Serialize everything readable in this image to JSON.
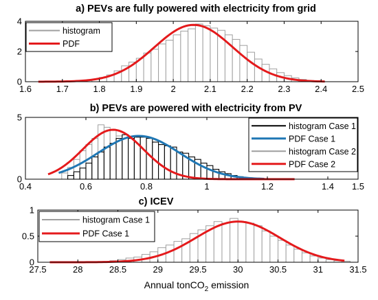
{
  "figure": {
    "xlabel_prefix": "Annual tonCO",
    "xlabel_sub": "2",
    "xlabel_suffix": " emission"
  },
  "colors": {
    "hist_gray": "#9e9e9e",
    "hist_black": "#000000",
    "pdf_red": "#e41a1c",
    "pdf_blue": "#1f77b4"
  },
  "chart_data": [
    {
      "type": "bar",
      "title": "a) PEVs are fully powered with electricity from grid",
      "xlim": [
        1.6,
        2.5
      ],
      "ylim": [
        0,
        4
      ],
      "xticks": [
        "1.6",
        "1.7",
        "1.8",
        "1.9",
        "2",
        "2.1",
        "2.2",
        "2.3",
        "2.4",
        "2.5"
      ],
      "yticks": [
        "0",
        "2",
        "4"
      ],
      "legend": {
        "position": "top-left",
        "entries": [
          "histogram",
          "PDF"
        ]
      },
      "series": [
        {
          "name": "histogram",
          "kind": "histogram",
          "color": "gray",
          "bin_start": 1.7,
          "bin_width": 0.02,
          "values": [
            0.01,
            0.02,
            0.04,
            0.08,
            0.15,
            0.28,
            0.45,
            0.72,
            1.05,
            1.3,
            1.55,
            1.9,
            2.15,
            2.5,
            2.75,
            3.1,
            3.35,
            3.5,
            3.82,
            3.7,
            3.55,
            3.4,
            3.1,
            2.8,
            2.4,
            1.95,
            1.5,
            1.15,
            0.85,
            0.6,
            0.4,
            0.25,
            0.15,
            0.08
          ]
        },
        {
          "name": "PDF",
          "kind": "pdf",
          "color": "red",
          "mean": 2.055,
          "sd": 0.106,
          "x_range": [
            1.635,
            2.41
          ]
        }
      ]
    },
    {
      "type": "bar",
      "title": "b) PEVs are powered with electricity from PV",
      "xlim": [
        0.4,
        1.5
      ],
      "ylim": [
        0,
        5
      ],
      "xticks": [
        "0.4",
        "0.6",
        "0.8",
        "1",
        "1.2",
        "1.4",
        "1.5"
      ],
      "yticks": [
        "0",
        "5"
      ],
      "legend": {
        "position": "top-right",
        "entries": [
          "histogram Case 1",
          "PDF Case 1",
          "histogram Case 2",
          "PDF Case 2"
        ]
      },
      "series": [
        {
          "name": "histogram Case 1",
          "kind": "histogram",
          "color": "black",
          "bin_start": 0.54,
          "bin_width": 0.02,
          "values": [
            0.3,
            0.6,
            0.9,
            1.3,
            1.8,
            2.2,
            2.6,
            2.9,
            3.3,
            3.6,
            3.3,
            3.4,
            3.4,
            3.3,
            3.0,
            2.8,
            2.7,
            2.6,
            2.2,
            2.1,
            1.8,
            1.6,
            1.3,
            1.1,
            0.8,
            0.6,
            0.45,
            0.3,
            0.2,
            0.12,
            0.08,
            0.04
          ]
        },
        {
          "name": "PDF Case 1",
          "kind": "pdf",
          "color": "blue",
          "mean": 0.775,
          "sd": 0.135,
          "peak": 3.5,
          "x_range": [
            0.51,
            1.19
          ]
        },
        {
          "name": "histogram Case 2",
          "kind": "histogram",
          "color": "gray",
          "bin_start": 0.52,
          "bin_width": 0.02,
          "values": [
            0.5,
            0.95,
            1.6,
            2.3,
            2.8,
            3.3,
            4.4,
            4.2,
            4.0,
            3.5,
            3.2,
            3.0,
            2.5,
            2.1,
            1.7,
            1.3,
            1.0,
            0.7,
            0.5,
            0.3,
            0.2,
            0.1,
            0.06,
            0.03
          ]
        },
        {
          "name": "PDF Case 2",
          "kind": "pdf",
          "color": "red",
          "mean": 0.69,
          "sd": 0.1,
          "peak": 4.0,
          "x_range": [
            0.475,
            1.29
          ]
        }
      ]
    },
    {
      "type": "bar",
      "title": "c) ICEV",
      "xlim": [
        27.5,
        31.5
      ],
      "ylim": [
        0,
        1
      ],
      "xticks": [
        "27.5",
        "28",
        "28.5",
        "29",
        "29.5",
        "30",
        "30.5",
        "31",
        "31.5"
      ],
      "yticks": [
        "0",
        "0.5",
        "1"
      ],
      "legend": {
        "position": "top-left",
        "entries": [
          "histogram Case 1",
          "PDF Case 1"
        ]
      },
      "series": [
        {
          "name": "histogram Case 1",
          "kind": "histogram",
          "color": "gray",
          "bin_start": 28.4,
          "bin_width": 0.1,
          "values": [
            0.03,
            0.05,
            0.08,
            0.1,
            0.15,
            0.2,
            0.28,
            0.33,
            0.4,
            0.45,
            0.55,
            0.62,
            0.7,
            0.78,
            0.75,
            0.84,
            0.78,
            0.75,
            0.7,
            0.6,
            0.5,
            0.42,
            0.33,
            0.25,
            0.18,
            0.12,
            0.08,
            0.05,
            0.03,
            0.02
          ]
        },
        {
          "name": "PDF Case 1",
          "kind": "pdf",
          "color": "red",
          "mean": 30.0,
          "sd": 0.52,
          "peak": 0.78,
          "x_range": [
            27.65,
            31.33
          ]
        }
      ]
    }
  ]
}
